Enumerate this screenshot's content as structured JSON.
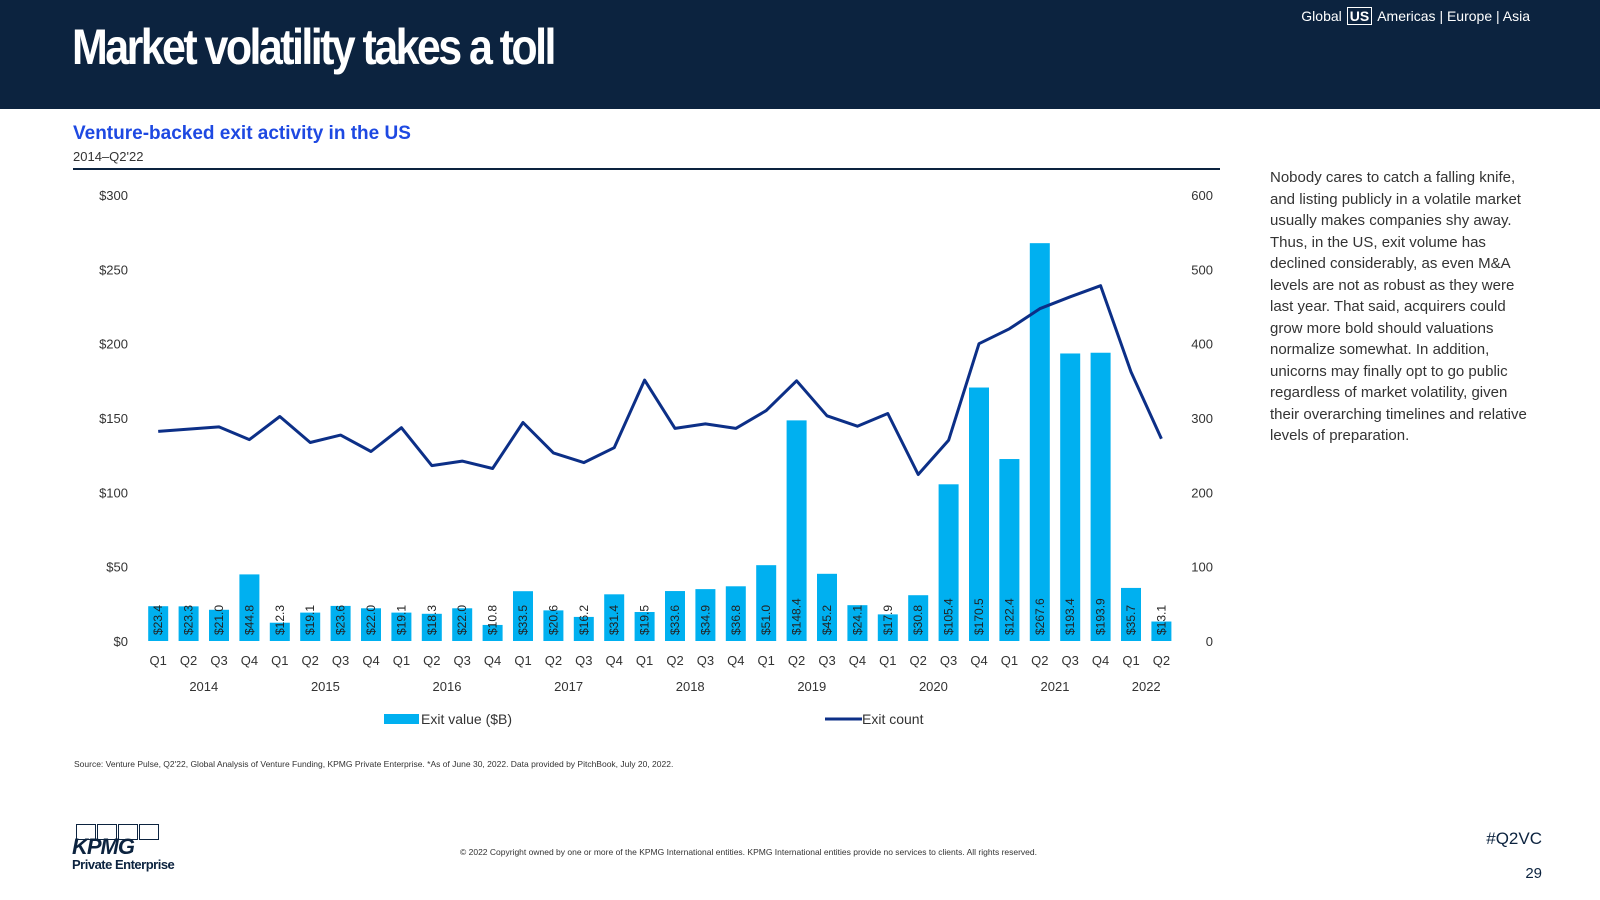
{
  "header": {
    "title": "Market volatility takes a toll",
    "nav": {
      "global": "Global",
      "us": "US",
      "rest": "Americas | Europe | Asia"
    }
  },
  "chart_title": "Venture-backed exit activity in the US",
  "chart_subtitle": "2014–Q2'22",
  "side_text": "Nobody cares to catch a falling knife, and listing publicly in a volatile market usually makes companies shy away. Thus, in the US, exit volume has declined considerably, as even M&A levels are not as robust as they were last year. That said, acquirers could grow more bold should valuations normalize somewhat. In addition, unicorns may finally opt to go public regardless of market volatility, given their overarching timelines and relative levels of preparation.",
  "source": "Source: Venture Pulse, Q2'22, Global Analysis of Venture Funding, KPMG Private Enterprise. *As of June 30, 2022. Data provided by PitchBook, July 20, 2022.",
  "copyright": "© 2022 Copyright owned by one or more of the KPMG International entities. KPMG International entities provide no services to clients. All rights reserved.",
  "hashtag": "#Q2VC",
  "page_number": "29",
  "logo": {
    "word": "KPMG",
    "sub": "Private Enterprise"
  },
  "colors": {
    "bar": "#00b0f0",
    "line": "#0c2f87",
    "header_bg": "#0c233f",
    "title": "#1e49e2"
  },
  "chart_data": {
    "type": "bar+line",
    "quarters": [
      "Q1",
      "Q2",
      "Q3",
      "Q4",
      "Q1",
      "Q2",
      "Q3",
      "Q4",
      "Q1",
      "Q2",
      "Q3",
      "Q4",
      "Q1",
      "Q2",
      "Q3",
      "Q4",
      "Q1",
      "Q2",
      "Q3",
      "Q4",
      "Q1",
      "Q2",
      "Q3",
      "Q4",
      "Q1",
      "Q2",
      "Q3",
      "Q4",
      "Q1",
      "Q2",
      "Q3",
      "Q4",
      "Q1",
      "Q2"
    ],
    "years": [
      {
        "label": "2014",
        "start": 0,
        "count": 4
      },
      {
        "label": "2015",
        "start": 4,
        "count": 4
      },
      {
        "label": "2016",
        "start": 8,
        "count": 4
      },
      {
        "label": "2017",
        "start": 12,
        "count": 4
      },
      {
        "label": "2018",
        "start": 16,
        "count": 4
      },
      {
        "label": "2019",
        "start": 20,
        "count": 4
      },
      {
        "label": "2020",
        "start": 24,
        "count": 4
      },
      {
        "label": "2021",
        "start": 28,
        "count": 4
      },
      {
        "label": "2022",
        "start": 32,
        "count": 2
      }
    ],
    "series": [
      {
        "name": "Exit value ($B)",
        "type": "bar",
        "axis": "left",
        "values": [
          23.4,
          23.3,
          21.0,
          44.8,
          12.3,
          19.1,
          23.6,
          22.0,
          19.1,
          18.3,
          22.0,
          10.8,
          33.5,
          20.6,
          16.2,
          31.4,
          19.5,
          33.6,
          34.9,
          36.8,
          51.0,
          148.4,
          45.2,
          24.1,
          17.9,
          30.8,
          105.4,
          170.5,
          122.4,
          267.6,
          193.4,
          193.9,
          35.7,
          13.1
        ],
        "labels": [
          "$23.4",
          "$23.3",
          "$21.0",
          "$44.8",
          "$12.3",
          "$19.1",
          "$23.6",
          "$22.0",
          "$19.1",
          "$18.3",
          "$22.0",
          "$10.8",
          "$33.5",
          "$20.6",
          "$16.2",
          "$31.4",
          "$19.5",
          "$33.6",
          "$34.9",
          "$36.8",
          "$51.0",
          "$148.4",
          "$45.2",
          "$24.1",
          "$17.9",
          "$30.8",
          "$105.4",
          "$170.5",
          "$122.4",
          "$267.6",
          "$193.4",
          "$193.9",
          "$35.7",
          "$13.1"
        ]
      },
      {
        "name": "Exit count",
        "type": "line",
        "axis": "right",
        "values": [
          282,
          285,
          288,
          271,
          302,
          267,
          277,
          255,
          287,
          236,
          242,
          232,
          294,
          253,
          240,
          260,
          351,
          286,
          292,
          286,
          310,
          350,
          303,
          289,
          306,
          224,
          270,
          400,
          420,
          447,
          463,
          478,
          362,
          272
        ]
      }
    ],
    "y_left": {
      "min": 0,
      "max": 300,
      "ticks": [
        0,
        50,
        100,
        150,
        200,
        250,
        300
      ],
      "tick_labels": [
        "$0",
        "$50",
        "$100",
        "$150",
        "$200",
        "$250",
        "$300"
      ]
    },
    "y_right": {
      "min": 0,
      "max": 600,
      "ticks": [
        0,
        100,
        200,
        300,
        400,
        500,
        600
      ],
      "tick_labels": [
        "0",
        "100",
        "200",
        "300",
        "400",
        "500",
        "600"
      ]
    },
    "legend": {
      "placement": "bottom",
      "items": [
        "Exit value ($B)",
        "Exit count"
      ]
    },
    "grid": false
  }
}
